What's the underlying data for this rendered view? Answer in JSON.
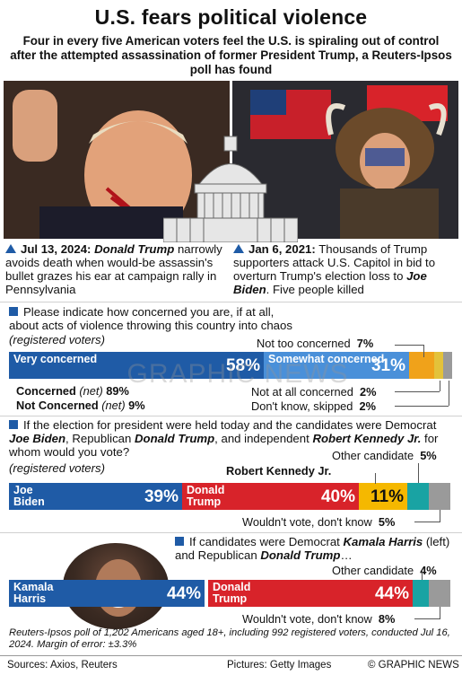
{
  "title": "U.S. fears political violence",
  "subtitle": "Four in every five American voters feel the U.S. is spiraling out of control after the attempted assassination of former President Trump, a Reuters-Ipsos poll has found",
  "events": {
    "left": {
      "date": "Jul 13, 2024:",
      "name": "Donald Trump",
      "text": "narrowly avoids death when would-be assassin's bullet grazes his ear at campaign rally in Pennsylvania"
    },
    "right": {
      "date": "Jan 6, 2021:",
      "text1": "Thousands of Trump supporters attack U.S. Capitol in bid to overturn Trump's election loss to",
      "name": "Joe Biden",
      "text2": ". Five people killed"
    }
  },
  "q1": {
    "question": "Please indicate how concerned you are, if at all, about acts of violence throwing this country into chaos",
    "note": "(registered voters)",
    "segments": [
      {
        "label": "Very concerned",
        "value": 58,
        "pct": "58%",
        "color": "#1f5ba6"
      },
      {
        "label": "Somewhat concerned",
        "value": 31,
        "pct": "31%",
        "color": "#4a90d9"
      },
      {
        "label": "Not too concerned",
        "value": 7,
        "pct": "7%",
        "color": "#f0a21a"
      },
      {
        "label": "Not at all concerned",
        "value": 2,
        "pct": "2%",
        "color": "#e3c23a"
      },
      {
        "label": "Don't know, skipped",
        "value": 2,
        "pct": "2%",
        "color": "#9a9a9a"
      }
    ],
    "net_concerned_label": "Concerned",
    "net_concerned_tag": "(net)",
    "net_concerned_value": "89%",
    "net_not_label": "Not Concerned",
    "net_not_tag": "(net)",
    "net_not_value": "9%"
  },
  "q2": {
    "question_pre": "If the election for president were held today and the candidates were Democrat",
    "biden": "Joe Biden",
    "mid1": ", Republican",
    "trump": "Donald Trump",
    "mid2": ", and independent",
    "kennedy": "Robert Kennedy Jr.",
    "question_post": "for whom would you vote?",
    "note": "(registered voters)",
    "segments": [
      {
        "label": "Joe Biden",
        "value": 39,
        "pct": "39%",
        "color": "#1f5ba6"
      },
      {
        "label": "Donald Trump",
        "value": 40,
        "pct": "40%",
        "color": "#d8232a"
      },
      {
        "label": "Robert Kennedy Jr.",
        "value": 11,
        "pct": "11%",
        "color": "#f5b800"
      },
      {
        "label": "Other candidate",
        "value": 5,
        "pct": "5%",
        "color": "#19a3a3"
      },
      {
        "label": "Wouldn't vote, don't know",
        "value": 5,
        "pct": "5%",
        "color": "#9a9a9a"
      }
    ]
  },
  "q3": {
    "question_pre": "If candidates were Democrat",
    "harris": "Kamala Harris",
    "question_mid": "(left) and Republican",
    "trump": "Donald Trump",
    "question_post": "…",
    "segments": [
      {
        "label": "Kamala Harris",
        "value": 44,
        "pct": "44%",
        "color": "#1f5ba6"
      },
      {
        "label": "Donald Trump",
        "value": 44,
        "pct": "44%",
        "color": "#d8232a"
      },
      {
        "label": "Other candidate",
        "value": 4,
        "pct": "4%",
        "color": "#19a3a3"
      },
      {
        "label": "Wouldn't vote, don't know",
        "value": 8,
        "pct": "8%",
        "color": "#9a9a9a"
      }
    ]
  },
  "method": "Reuters-Ipsos poll of 1,202 Americans aged 18+, including 992 registered voters, conducted Jul 16, 2024. Margin of error: ±3.3%",
  "footer": {
    "sources": "Sources: Axios, Reuters",
    "pictures": "Pictures: Getty Images",
    "credit": "© GRAPHIC NEWS"
  },
  "watermark": "GRAPHIC NEWS"
}
